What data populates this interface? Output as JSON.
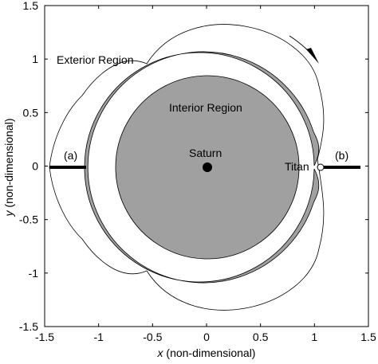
{
  "chart_data": {
    "type": "diagram",
    "x_axis": {
      "label_var": "x",
      "label_rest": " (non-dimensional)",
      "range": [
        -1.5,
        1.5
      ],
      "ticks": [
        -1.5,
        -1,
        -0.5,
        0,
        0.5,
        1,
        1.5
      ],
      "tick_labels": [
        "-1.5",
        "-1",
        "-0.5",
        "0",
        "0.5",
        "1",
        "1.5"
      ]
    },
    "y_axis": {
      "label_var": "y",
      "label_rest": " (non-dimensional)",
      "range": [
        -1.5,
        1.5
      ],
      "ticks": [
        1.5,
        1,
        0.5,
        0,
        -0.5,
        -1,
        -1.5
      ],
      "tick_labels": [
        "1.5",
        "1",
        "0.5",
        "0",
        "-0.5",
        "-1",
        "-1.5"
      ]
    },
    "annotations": {
      "exterior": "Exterior Region",
      "interior": "Interior Region",
      "saturn": "Saturn",
      "titan": "Titan",
      "a": "(a)",
      "b": "(b)"
    },
    "bodies": {
      "saturn": {
        "x": 0,
        "y": 0
      },
      "titan": {
        "x": 1.04,
        "y": 0
      }
    },
    "colors": {
      "forbidden_ring": "#a0a0a0",
      "lines": "#000000",
      "background": "#ffffff"
    }
  }
}
